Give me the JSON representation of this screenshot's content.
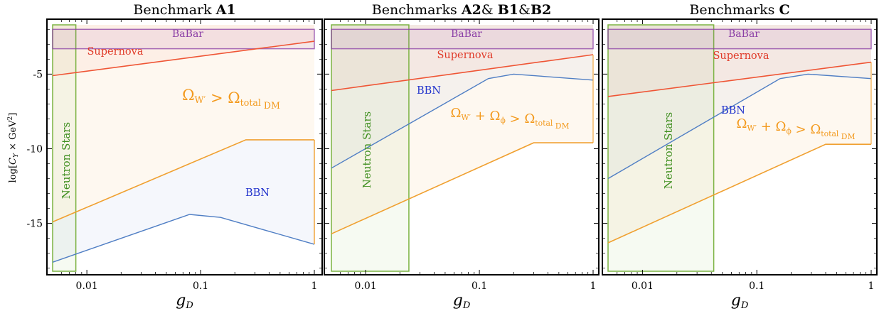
{
  "figure": {
    "ylabel": "log[C_Y × GeV²]",
    "xlabel": "g_D"
  },
  "colors": {
    "babar": "#8b3fa6",
    "supernova": "#ef5535",
    "bbn": "#4f7ec4",
    "relic": "#f0a030",
    "neutron_stars": "#7cb342"
  },
  "chart_data": [
    {
      "type": "area",
      "title": "Benchmark A1",
      "title_plain": "Benchmark ",
      "title_bold": [
        "A1"
      ],
      "xscale": "log",
      "xlim": [
        0.005,
        1
      ],
      "ylim": [
        -18.3,
        -1.7
      ],
      "xticks": [
        0.01,
        0.1,
        1
      ],
      "xtick_labels": [
        "0.01",
        "0.1",
        "1"
      ],
      "yticks": [
        -5,
        -10,
        -15
      ],
      "ytick_labels": [
        "-5",
        "-10",
        "-15"
      ],
      "regions": {
        "babar": {
          "label": "BaBar",
          "y_range": [
            -3.3,
            -2.0
          ]
        },
        "supernova": {
          "label": "Supernova",
          "points": [
            [
              0.005,
              -5.1
            ],
            [
              1,
              -2.8
            ]
          ]
        },
        "relic": {
          "label": "Ω_W′ > Ω_total DM",
          "points": [
            [
              0.005,
              -14.9
            ],
            [
              0.25,
              -9.4
            ],
            [
              1,
              -9.4
            ]
          ]
        },
        "bbn": {
          "label": "BBN",
          "points": [
            [
              0.005,
              -17.6
            ],
            [
              0.04,
              -15.2
            ],
            [
              0.08,
              -14.4
            ],
            [
              0.15,
              -14.6
            ],
            [
              1,
              -16.4
            ]
          ]
        },
        "neutron_stars": {
          "label": "Neutron Stars",
          "x_range": [
            0.005,
            0.008
          ]
        }
      }
    },
    {
      "type": "area",
      "title": "Benchmarks A2& B1&B2",
      "title_plain": "Benchmarks ",
      "title_bold": [
        "A2",
        "& ",
        "B1",
        "&",
        "B2"
      ],
      "xscale": "log",
      "xlim": [
        0.005,
        1
      ],
      "ylim": [
        -18.3,
        -1.7
      ],
      "xticks": [
        0.01,
        0.1,
        1
      ],
      "xtick_labels": [
        "0.01",
        "0.1",
        "1"
      ],
      "yticks": [
        -5,
        -10,
        -15
      ],
      "ytick_labels": [
        "",
        "",
        ""
      ],
      "regions": {
        "babar": {
          "label": "BaBar",
          "y_range": [
            -3.3,
            -2.0
          ]
        },
        "supernova": {
          "label": "Supernova",
          "points": [
            [
              0.005,
              -6.1
            ],
            [
              1,
              -3.7
            ]
          ]
        },
        "relic": {
          "label": "Ω_W′ + Ω_ϕ > Ω_total DM",
          "points": [
            [
              0.005,
              -15.7
            ],
            [
              0.3,
              -9.6
            ],
            [
              1,
              -9.6
            ]
          ]
        },
        "bbn": {
          "label": "BBN",
          "points": [
            [
              0.005,
              -11.3
            ],
            [
              0.12,
              -5.3
            ],
            [
              0.2,
              -5.0
            ],
            [
              1,
              -5.4
            ]
          ]
        },
        "neutron_stars": {
          "label": "Neutron Stars",
          "x_range": [
            0.005,
            0.024
          ]
        }
      }
    },
    {
      "type": "area",
      "title": "Benchmarks C",
      "title_plain": "Benchmarks ",
      "title_bold": [
        "C"
      ],
      "xscale": "log",
      "xlim": [
        0.005,
        1
      ],
      "ylim": [
        -18.3,
        -1.7
      ],
      "xticks": [
        0.01,
        0.1,
        1
      ],
      "xtick_labels": [
        "0.01",
        "0.1",
        "1"
      ],
      "yticks": [
        -5,
        -10,
        -15
      ],
      "ytick_labels": [
        "",
        "",
        ""
      ],
      "regions": {
        "babar": {
          "label": "BaBar",
          "y_range": [
            -3.3,
            -2.0
          ]
        },
        "supernova": {
          "label": "Supernova",
          "points": [
            [
              0.005,
              -6.5
            ],
            [
              1,
              -4.2
            ]
          ]
        },
        "relic": {
          "label": "Ω_W′ + Ω_ϕ > Ω_total DM",
          "points": [
            [
              0.005,
              -16.3
            ],
            [
              0.4,
              -9.7
            ],
            [
              1,
              -9.7
            ]
          ]
        },
        "bbn": {
          "label": "BBN",
          "points": [
            [
              0.005,
              -12.0
            ],
            [
              0.16,
              -5.3
            ],
            [
              0.28,
              -5.0
            ],
            [
              1,
              -5.3
            ]
          ]
        },
        "neutron_stars": {
          "label": "Neutron Stars",
          "x_range": [
            0.005,
            0.042
          ]
        }
      }
    }
  ]
}
